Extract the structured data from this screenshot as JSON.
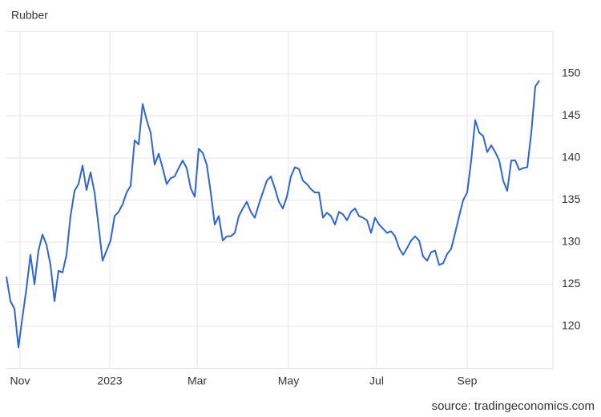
{
  "chart_data": {
    "type": "line",
    "title": "Rubber",
    "source": "source: tradingeconomics.com",
    "values": [
      125.9,
      123,
      122.1,
      117.5,
      121.1,
      124.5,
      128.5,
      125,
      129,
      130.9,
      129.7,
      127.3,
      123,
      126.6,
      126.4,
      128.5,
      133.1,
      136.1,
      136.9,
      139.1,
      136.2,
      138.3,
      135.9,
      131.9,
      127.8,
      129,
      130.2,
      133.1,
      133.6,
      134.5,
      135.9,
      136.7,
      142.1,
      141.6,
      146.4,
      144.5,
      143,
      139.2,
      140.5,
      138.8,
      136.9,
      137.6,
      137.8,
      138.8,
      139.7,
      138.8,
      136.4,
      135.4,
      141.1,
      140.6,
      139.2,
      135.9,
      132.1,
      133.1,
      130.2,
      130.7,
      130.7,
      131.1,
      133.1,
      134,
      134.8,
      133.6,
      132.9,
      134.5,
      135.9,
      137.3,
      137.8,
      136.4,
      134.8,
      134,
      135.4,
      137.8,
      138.9,
      138.7,
      137.3,
      136.9,
      136.3,
      135.9,
      135.9,
      132.9,
      133.5,
      133.1,
      132.1,
      133.6,
      133.3,
      132.6,
      133.6,
      134,
      133.1,
      132.9,
      132.6,
      131.1,
      132.9,
      132.1,
      131.6,
      131.1,
      131.3,
      130.7,
      129.3,
      128.5,
      129.3,
      130.2,
      130.7,
      130.2,
      128.3,
      127.8,
      128.8,
      129,
      127.3,
      127.5,
      128.6,
      129.2,
      131.1,
      133.1,
      135,
      135.9,
      139.7,
      144.5,
      143,
      142.6,
      140.7,
      141.5,
      140.7,
      139.7,
      137.3,
      136.1,
      139.7,
      139.7,
      138.6,
      138.8,
      138.9,
      143,
      148.5,
      149.2
    ],
    "color": "#2d64dc",
    "xlim": [
      0,
      136.4
    ],
    "xticks": [
      {
        "value": 3.4,
        "label": "Nov"
      },
      {
        "value": 25.8,
        "label": "2023"
      },
      {
        "value": 47.6,
        "label": "Mar"
      },
      {
        "value": 70.4,
        "label": "May"
      },
      {
        "value": 92.4,
        "label": "Jul"
      },
      {
        "value": 115,
        "label": "Sep"
      }
    ],
    "ylim": [
      115,
      155
    ],
    "yticks": [
      120,
      125,
      130,
      135,
      140,
      145,
      150
    ],
    "grid": true
  }
}
